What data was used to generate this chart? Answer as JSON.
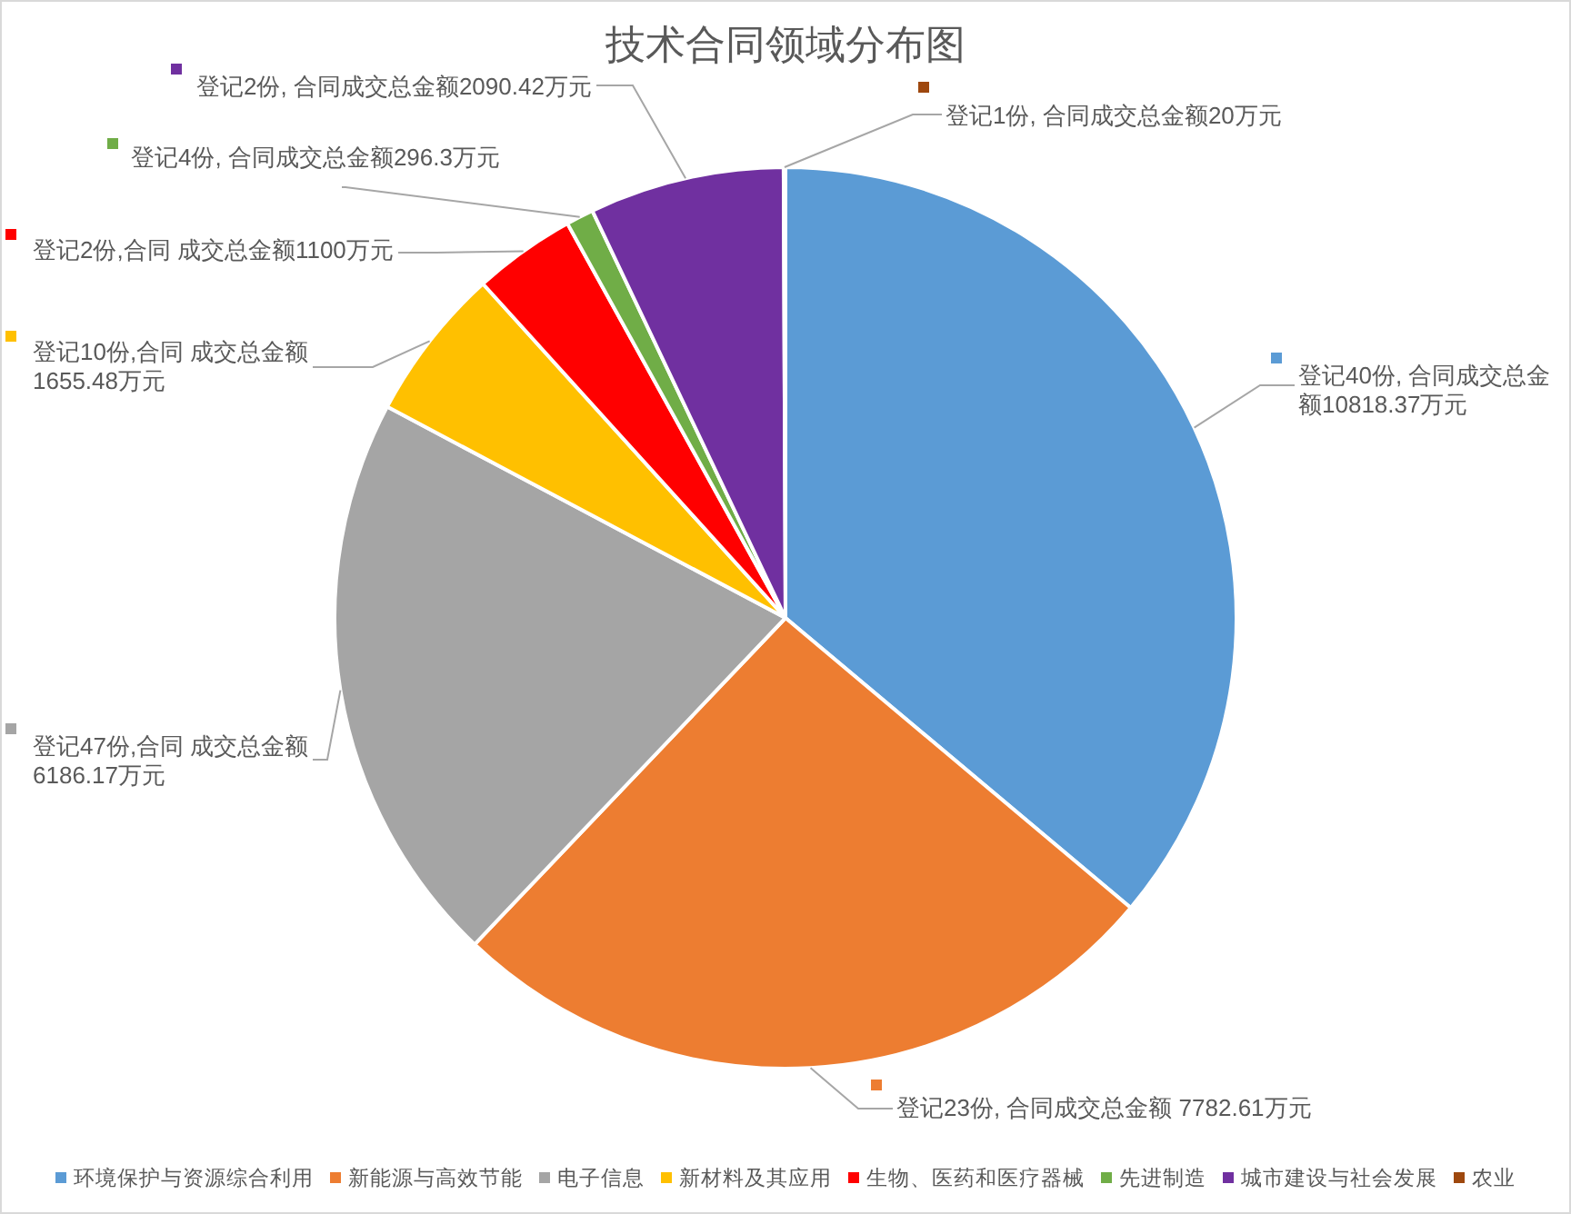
{
  "chart_data": {
    "type": "pie",
    "title": "技术合同领域分布图",
    "categories": [
      "环境保护与资源综合利用",
      "新能源与高效节能",
      "电子信息",
      "新材料及其应用",
      "生物、医药和医疗器械",
      "先进制造",
      "城市建设与社会发展",
      "农业"
    ],
    "values": [
      10818.37,
      7782.61,
      6186.17,
      1655.48,
      1100,
      296.3,
      2090.42,
      20
    ],
    "colors": [
      "#5b9bd5",
      "#ed7d31",
      "#a5a5a5",
      "#ffc000",
      "#ff0000",
      "#70ad47",
      "#7030a0",
      "#9e480e"
    ],
    "value_labels": [
      "登记40份, 合同成交总金额10818.37万元",
      "登记23份, 合同成交总金额 7782.61万元",
      "登记47份,合同 成交总金额6186.17万元",
      "登记10份,合同 成交总金额1655.48万元",
      "登记2份,合同 成交总金额1100万元",
      "登记4份, 合同成交总金额296.3万元",
      "登记2份, 合同成交总金额2090.42万元",
      "登记1份, 合同成交总金额20万元"
    ],
    "legend": "bottom"
  }
}
